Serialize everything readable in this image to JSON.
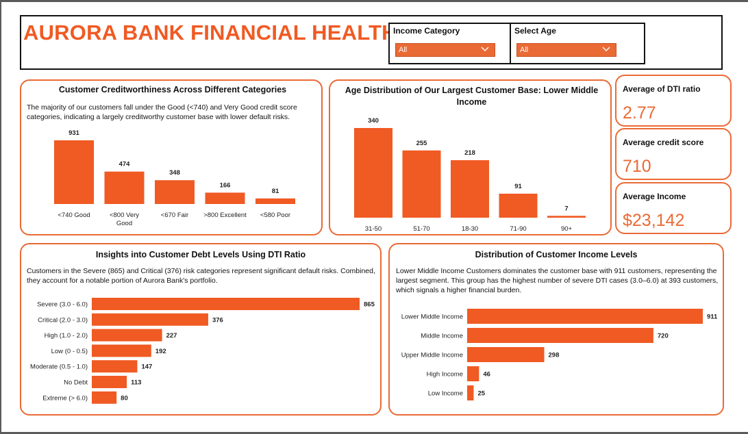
{
  "dashboard": {
    "title": "AURORA BANK FINANCIAL HEALTH",
    "slicers": [
      {
        "label": "Income Category",
        "value": "All"
      },
      {
        "label": "Select Age",
        "value": "All"
      }
    ]
  },
  "colors": {
    "accent": "#f05a23",
    "bar": "#f05a23",
    "slicer_bg": "#ea6a35",
    "border": "#ea6a35"
  },
  "kpis": [
    {
      "label": "Average of DTI ratio",
      "value": "2.77"
    },
    {
      "label": "Average credit score",
      "value": "710"
    },
    {
      "label": "Average Income",
      "value": "$23,142"
    }
  ],
  "credit_card": {
    "title": "Customer Creditworthiness Across Different Categories",
    "description": "The majority of our customers fall under the Good (<740) and Very Good credit score categories, indicating a largely creditworthy customer base with lower default risks."
  },
  "age_card": {
    "title": "Age Distribution of Our Largest Customer Base: Lower Middle Income"
  },
  "dti_card": {
    "title": "Insights into Customer Debt Levels Using DTI Ratio",
    "description": "Customers in the Severe (865) and Critical (376) risk categories represent significant default risks. Combined, they account for a notable portion of Aurora Bank's portfolio."
  },
  "income_card": {
    "title": "Distribution of Customer Income Levels",
    "description": "Lower Middle Income Customers dominates the customer base with 911 customers, representing the largest segment. This group has the highest number of severe DTI cases (3.0–6.0) at 393 customers, which signals a higher financial burden."
  },
  "chart_data": [
    {
      "id": "credit",
      "type": "bar",
      "title": "Customer Creditworthiness Across Different Categories",
      "categories": [
        "<740 Good",
        "<800 Very Good",
        "<670 Fair",
        ">800 Excellent",
        "<580 Poor"
      ],
      "values": [
        931,
        474,
        348,
        166,
        81
      ],
      "ylim": [
        0,
        931
      ]
    },
    {
      "id": "age",
      "type": "bar",
      "title": "Age Distribution of Our Largest Customer Base: Lower Middle Income",
      "categories": [
        "31-50",
        "51-70",
        "18-30",
        "71-90",
        "90+"
      ],
      "values": [
        340,
        255,
        218,
        91,
        7
      ],
      "ylim": [
        0,
        340
      ]
    },
    {
      "id": "dti",
      "type": "bar",
      "orientation": "horizontal",
      "title": "Insights into Customer Debt Levels Using DTI Ratio",
      "categories": [
        "Severe (3.0 - 6.0)",
        "Critical (2.0 - 3.0)",
        "High (1.0 - 2.0)",
        "Low (0 - 0.5)",
        "Moderate (0.5 - 1.0)",
        "No Debt",
        "Extreme (> 6.0)"
      ],
      "values": [
        865,
        376,
        227,
        192,
        147,
        113,
        80
      ],
      "xlim": [
        0,
        865
      ]
    },
    {
      "id": "income",
      "type": "bar",
      "orientation": "horizontal",
      "title": "Distribution of Customer Income Levels",
      "categories": [
        "Lower Middle Income",
        "Middle Income",
        "Upper Middle Income",
        "High Income",
        "Low Income"
      ],
      "values": [
        911,
        720,
        298,
        46,
        25
      ],
      "xlim": [
        0,
        911
      ]
    }
  ]
}
